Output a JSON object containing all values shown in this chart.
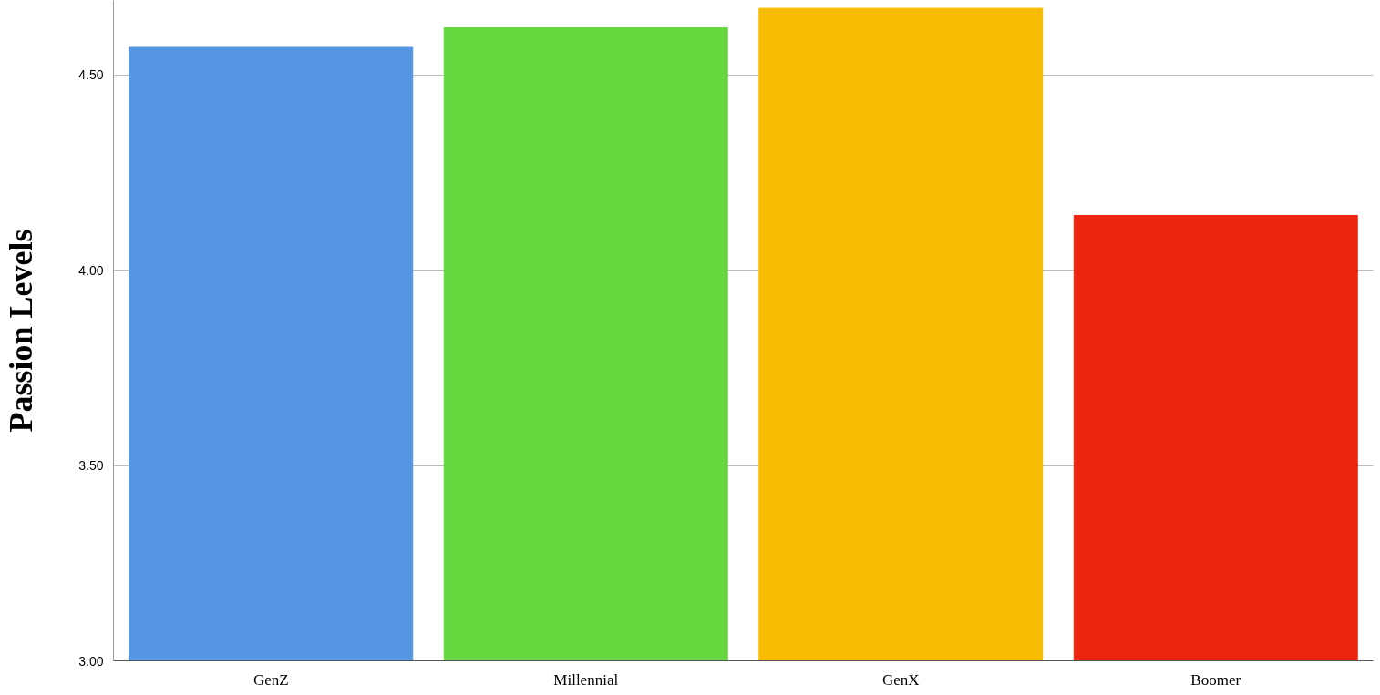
{
  "chart_data": {
    "type": "bar",
    "ylabel": "Passion Levels",
    "categories": [
      "GenZ",
      "Millennial",
      "GenX",
      "Boomer"
    ],
    "values": [
      4.57,
      4.62,
      4.67,
      4.14
    ],
    "colors": [
      "#5596e3",
      "#64d83c",
      "#f8bc03",
      "#ec2410"
    ],
    "ylim": [
      3,
      4.69
    ],
    "yticks": [
      {
        "value": 3,
        "label": "3.00"
      },
      {
        "value": 3.5,
        "label": "3.50"
      },
      {
        "value": 4,
        "label": "4.00"
      },
      {
        "value": 4.5,
        "label": "4.50"
      }
    ],
    "grid": "y"
  }
}
